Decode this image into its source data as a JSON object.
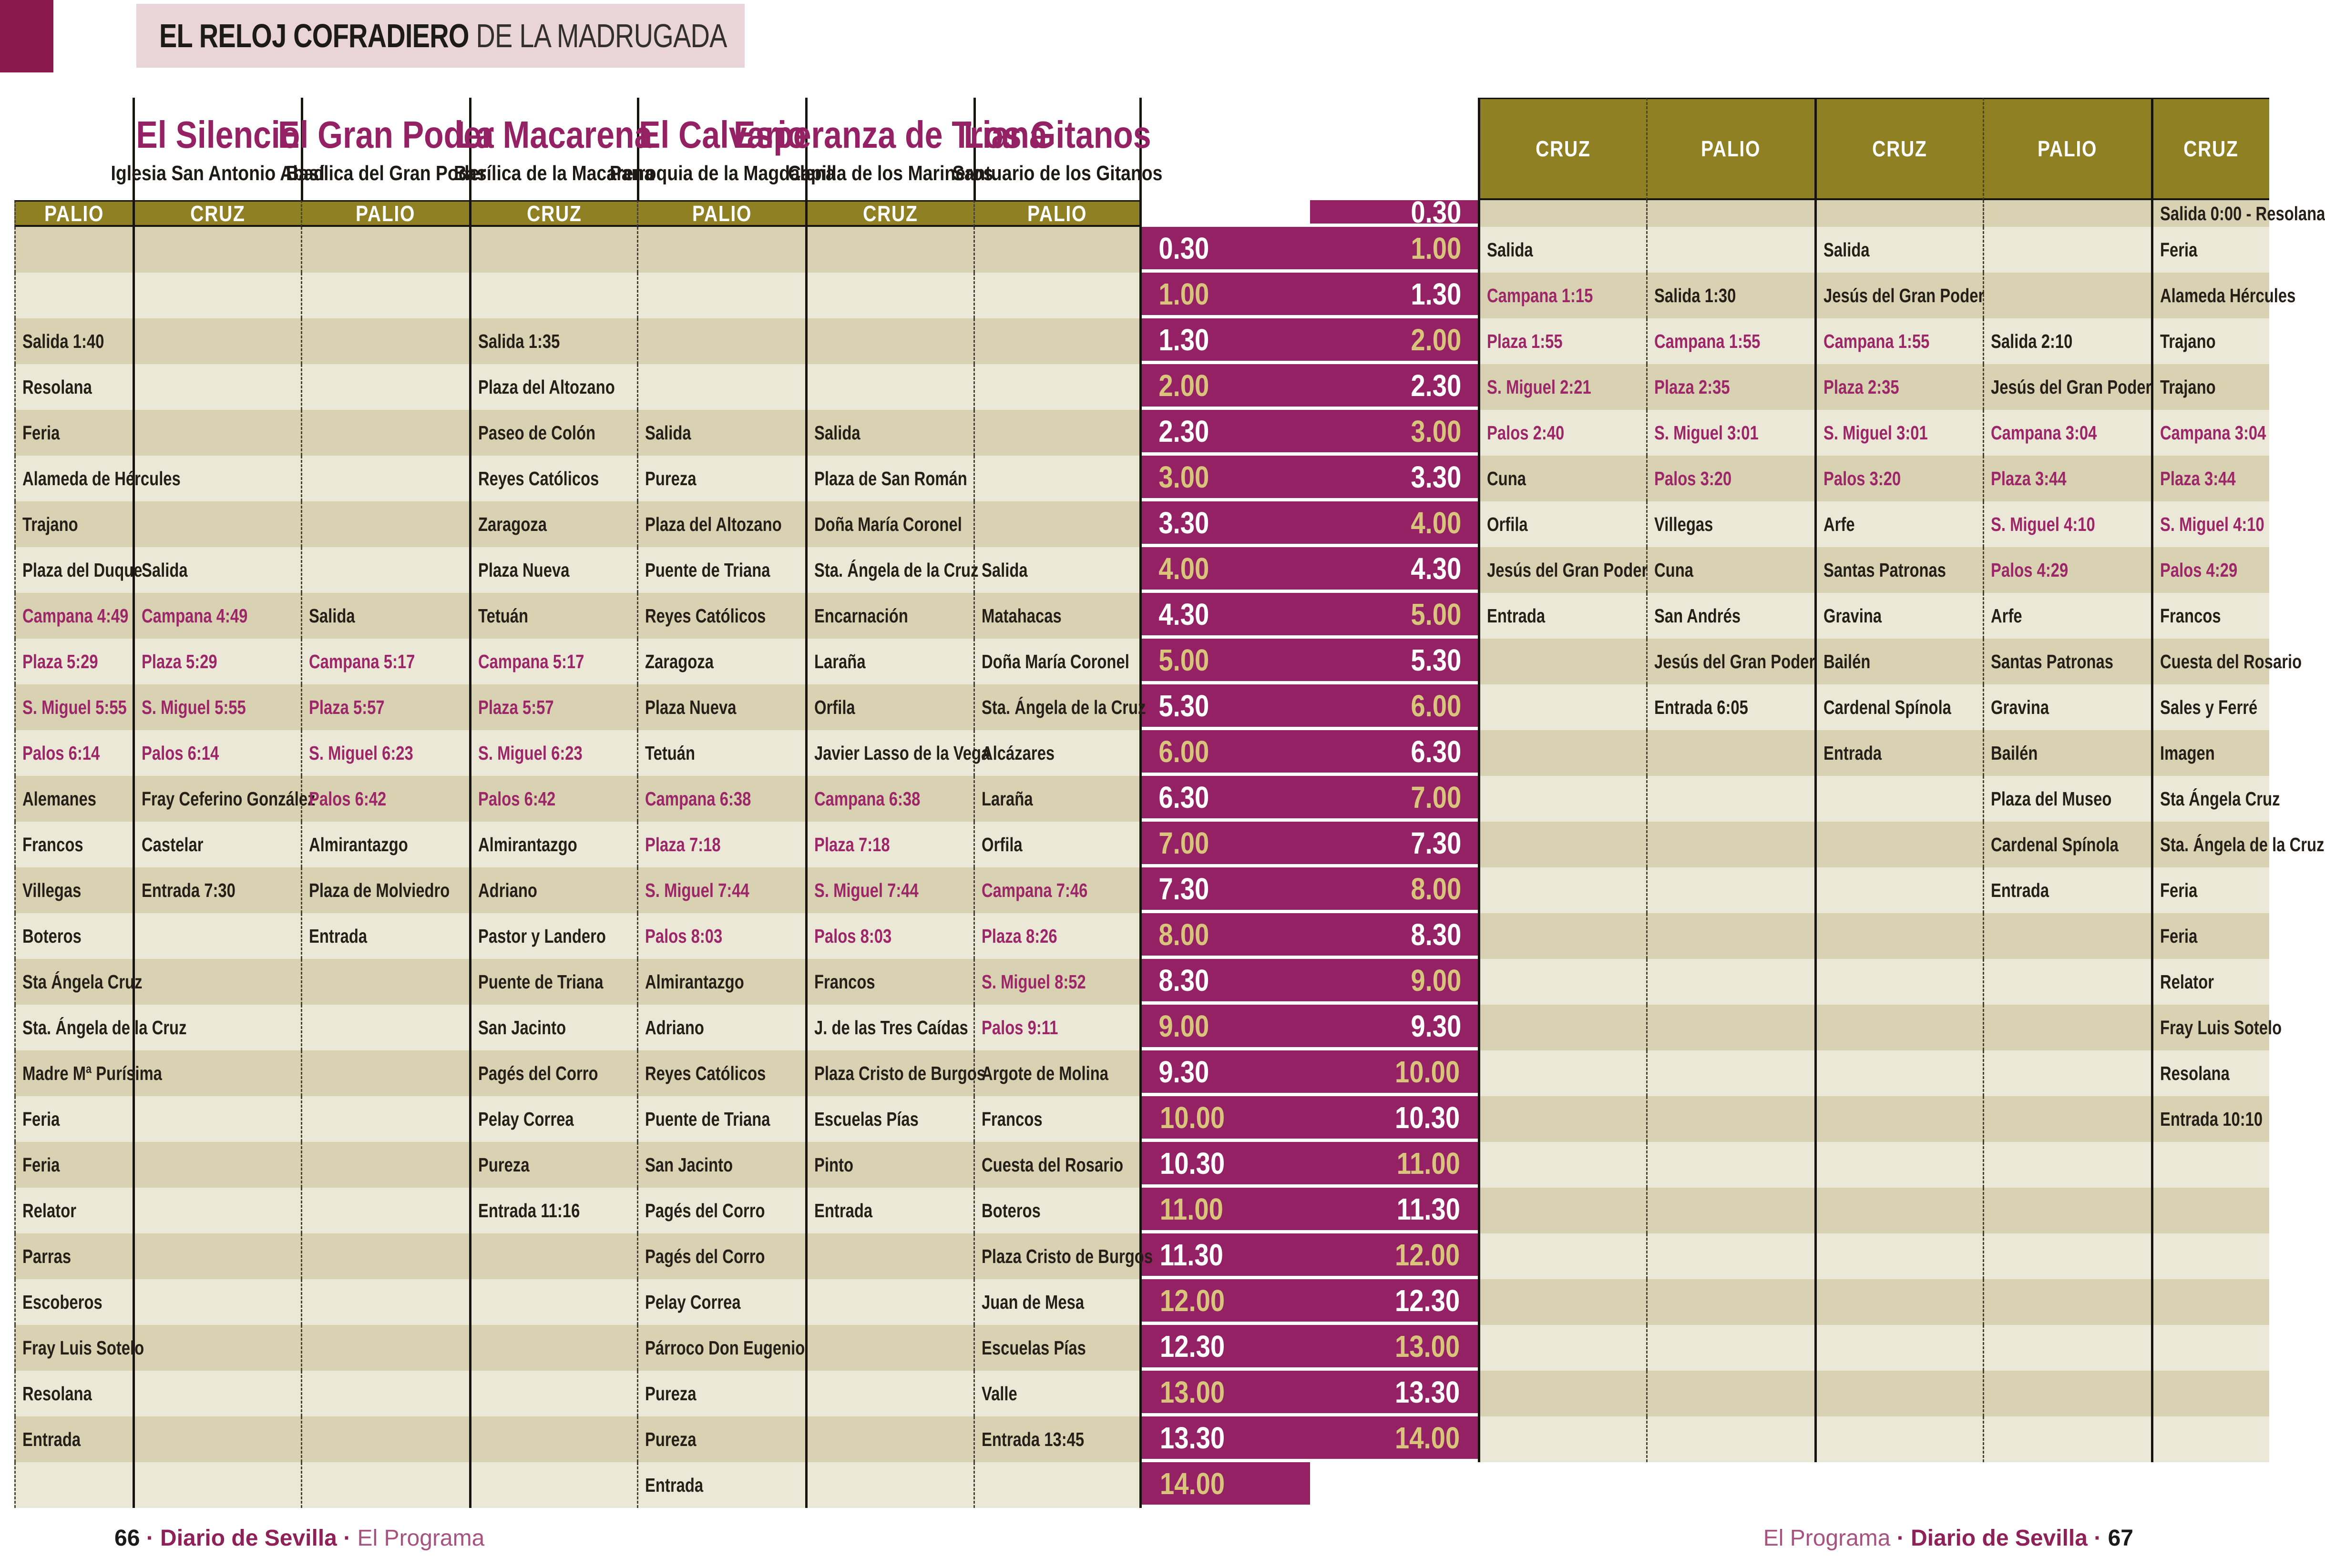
{
  "header": {
    "title_bold": "EL RELOJ COFRADIERO",
    "title_rest": " DE LA MADRUGADA"
  },
  "footer": {
    "left_page": "66",
    "left_brand": "Diario de Sevilla",
    "left_program": "El Programa",
    "right_program": "El Programa",
    "right_brand": "Diario de Sevilla",
    "right_page": "67",
    "separator": "·"
  },
  "colors": {
    "accent_maroon": "#932163",
    "corner_maroon": "#8a1a4e",
    "band_pink": "#e9d4da",
    "olive_header": "#8e8023",
    "row_tan": "#d8d1b2",
    "row_cream": "#ece8d8",
    "time_gold": "#d9c47b",
    "highlight_text": "#9c2768",
    "clock_mauve": "#b5738f"
  },
  "table": {
    "column_headers": [
      "CRUZ",
      "PALIO"
    ],
    "times": [
      "0.30",
      "1.00",
      "1.30",
      "2.00",
      "2.30",
      "3.00",
      "3.30",
      "4.00",
      "4.30",
      "5.00",
      "5.30",
      "6.00",
      "6.30",
      "7.00",
      "7.30",
      "8.00",
      "8.30",
      "9.00",
      "9.30",
      "10.00",
      "10.30",
      "11.00",
      "11.30",
      "12.00",
      "12.30",
      "13.00",
      "13.30",
      "14.00"
    ],
    "brotherhoods": [
      {
        "name": "El Silencio",
        "church": "Iglesia San Antonio Abad",
        "cruz": [
          {
            "time": "1.00",
            "text": "Salida"
          },
          {
            "time": "1.30",
            "text": "Campana 1:15",
            "highlight": true
          },
          {
            "time": "2.00",
            "text": "Plaza 1:55",
            "highlight": true
          },
          {
            "time": "2.30",
            "text": "S. Miguel 2:21",
            "highlight": true
          },
          {
            "time": "3.00",
            "text": "Palos 2:40",
            "highlight": true
          },
          {
            "time": "3.30",
            "text": "Cuna"
          },
          {
            "time": "4.00",
            "text": "Orfila"
          },
          {
            "time": "4.30",
            "text": "Jesús del Gran Poder"
          },
          {
            "time": "5.00",
            "text": "Entrada"
          }
        ],
        "palio": [
          {
            "time": "1.30",
            "text": "Salida 1:30"
          },
          {
            "time": "2.00",
            "text": "Campana 1:55",
            "highlight": true
          },
          {
            "time": "2.30",
            "text": "Plaza 2:35",
            "highlight": true
          },
          {
            "time": "3.00",
            "text": "S. Miguel 3:01",
            "highlight": true
          },
          {
            "time": "3.30",
            "text": "Palos 3:20",
            "highlight": true
          },
          {
            "time": "4.00",
            "text": "Villegas"
          },
          {
            "time": "4.30",
            "text": "Cuna"
          },
          {
            "time": "5.00",
            "text": "San Andrés"
          },
          {
            "time": "5.30",
            "text": "Jesús del Gran Poder"
          },
          {
            "time": "6.00",
            "text": "Entrada 6:05"
          }
        ]
      },
      {
        "name": "El Gran Poder",
        "church": "Basílica del Gran Poder",
        "cruz": [
          {
            "time": "1.00",
            "text": "Salida"
          },
          {
            "time": "1.30",
            "text": "Jesús del Gran Poder"
          },
          {
            "time": "2.00",
            "text": "Campana 1:55",
            "highlight": true
          },
          {
            "time": "2.30",
            "text": "Plaza 2:35",
            "highlight": true
          },
          {
            "time": "3.00",
            "text": "S. Miguel 3:01",
            "highlight": true
          },
          {
            "time": "3.30",
            "text": "Palos 3:20",
            "highlight": true
          },
          {
            "time": "4.00",
            "text": "Arfe"
          },
          {
            "time": "4.30",
            "text": "Santas Patronas"
          },
          {
            "time": "5.00",
            "text": "Gravina"
          },
          {
            "time": "5.30",
            "text": "Bailén"
          },
          {
            "time": "6.00",
            "text": "Cardenal Spínola"
          },
          {
            "time": "6.30",
            "text": "Entrada"
          }
        ],
        "palio": [
          {
            "time": "2.00",
            "text": "Salida 2:10"
          },
          {
            "time": "2.30",
            "text": "Jesús del Gran Poder"
          },
          {
            "time": "3.00",
            "text": "Campana 3:04",
            "highlight": true
          },
          {
            "time": "3.30",
            "text": "Plaza 3:44",
            "highlight": true
          },
          {
            "time": "4.00",
            "text": "S. Miguel 4:10",
            "highlight": true
          },
          {
            "time": "4.30",
            "text": "Palos 4:29",
            "highlight": true
          },
          {
            "time": "5.00",
            "text": "Arfe"
          },
          {
            "time": "5.30",
            "text": "Santas Patronas"
          },
          {
            "time": "6.00",
            "text": "Gravina"
          },
          {
            "time": "6.30",
            "text": "Bailén"
          },
          {
            "time": "7.00",
            "text": "Plaza del Museo"
          },
          {
            "time": "7.30",
            "text": "Cardenal Spínola"
          },
          {
            "time": "8.00",
            "text": "Entrada"
          }
        ]
      },
      {
        "name": "La Macarena",
        "church": "Basílica de la Macarena",
        "cruz": [
          {
            "time": "0.30",
            "text": "Salida 0:00 - Resolana"
          },
          {
            "time": "1.00",
            "text": "Feria"
          },
          {
            "time": "1.30",
            "text": "Alameda Hércules"
          },
          {
            "time": "2.00",
            "text": "Trajano"
          },
          {
            "time": "2.30",
            "text": "Trajano"
          },
          {
            "time": "3.00",
            "text": "Campana 3:04",
            "highlight": true
          },
          {
            "time": "3.30",
            "text": "Plaza 3:44",
            "highlight": true
          },
          {
            "time": "4.00",
            "text": "S. Miguel 4:10",
            "highlight": true
          },
          {
            "time": "4.30",
            "text": "Palos 4:29",
            "highlight": true
          },
          {
            "time": "5.00",
            "text": "Francos"
          },
          {
            "time": "5.30",
            "text": "Cuesta del Rosario"
          },
          {
            "time": "6.00",
            "text": "Sales y Ferré"
          },
          {
            "time": "6.30",
            "text": "Imagen"
          },
          {
            "time": "7.00",
            "text": "Sta Ángela Cruz"
          },
          {
            "time": "7.30",
            "text": "Sta. Ángela de la Cruz"
          },
          {
            "time": "8.00",
            "text": "Feria"
          },
          {
            "time": "8.30",
            "text": "Feria"
          },
          {
            "time": "9.00",
            "text": "Relator"
          },
          {
            "time": "9.30",
            "text": "Fray Luis Sotelo"
          },
          {
            "time": "10.00",
            "text": "Resolana"
          },
          {
            "time": "10.30",
            "text": "Entrada 10:10"
          }
        ],
        "palio": [
          {
            "time": "1.30",
            "text": "Salida 1:40"
          },
          {
            "time": "2.00",
            "text": "Resolana"
          },
          {
            "time": "2.30",
            "text": "Feria"
          },
          {
            "time": "3.00",
            "text": "Alameda de Hércules"
          },
          {
            "time": "3.30",
            "text": "Trajano"
          },
          {
            "time": "4.00",
            "text": "Plaza del Duque"
          },
          {
            "time": "4.30",
            "text": "Campana 4:49",
            "highlight": true
          },
          {
            "time": "5.00",
            "text": "Plaza 5:29",
            "highlight": true
          },
          {
            "time": "5.30",
            "text": "S. Miguel 5:55",
            "highlight": true
          },
          {
            "time": "6.00",
            "text": "Palos 6:14",
            "highlight": true
          },
          {
            "time": "6.30",
            "text": "Alemanes"
          },
          {
            "time": "7.00",
            "text": "Francos"
          },
          {
            "time": "7.30",
            "text": "Villegas"
          },
          {
            "time": "8.00",
            "text": "Boteros"
          },
          {
            "time": "8.30",
            "text": "Sta Ángela Cruz"
          },
          {
            "time": "9.00",
            "text": "Sta. Ángela de la Cruz"
          },
          {
            "time": "9.30",
            "text": "Madre Mª Purísima"
          },
          {
            "time": "10.00",
            "text": "Feria"
          },
          {
            "time": "10.30",
            "text": "Feria"
          },
          {
            "time": "11.00",
            "text": "Relator"
          },
          {
            "time": "11.30",
            "text": "Parras"
          },
          {
            "time": "12.00",
            "text": "Escoberos"
          },
          {
            "time": "12.30",
            "text": "Fray Luis Sotelo"
          },
          {
            "time": "13.00",
            "text": "Resolana"
          },
          {
            "time": "13.30",
            "text": "Entrada"
          }
        ]
      },
      {
        "name": "El Calvario",
        "church": "Parroquia de la Magdalena",
        "cruz": [
          {
            "time": "4.00",
            "text": "Salida"
          },
          {
            "time": "4.30",
            "text": "Campana 4:49",
            "highlight": true
          },
          {
            "time": "5.00",
            "text": "Plaza 5:29",
            "highlight": true
          },
          {
            "time": "5.30",
            "text": "S. Miguel 5:55",
            "highlight": true
          },
          {
            "time": "6.00",
            "text": "Palos 6:14",
            "highlight": true
          },
          {
            "time": "6.30",
            "text": "Fray Ceferino González"
          },
          {
            "time": "7.00",
            "text": "Castelar"
          },
          {
            "time": "7.30",
            "text": "Entrada 7:30"
          }
        ],
        "palio": [
          {
            "time": "4.30",
            "text": "Salida"
          },
          {
            "time": "5.00",
            "text": "Campana 5:17",
            "highlight": true
          },
          {
            "time": "5.30",
            "text": "Plaza 5:57",
            "highlight": true
          },
          {
            "time": "6.00",
            "text": "S. Miguel 6:23",
            "highlight": true
          },
          {
            "time": "6.30",
            "text": "Palos 6:42",
            "highlight": true
          },
          {
            "time": "7.00",
            "text": "Almirantazgo"
          },
          {
            "time": "7.30",
            "text": "Plaza de Molviedro"
          },
          {
            "time": "8.00",
            "text": "Entrada"
          }
        ]
      },
      {
        "name": "Esperanza de Triana",
        "church": "Capilla de los Marineros",
        "cruz": [
          {
            "time": "1.30",
            "text": "Salida 1:35"
          },
          {
            "time": "2.00",
            "text": "Plaza del Altozano"
          },
          {
            "time": "2.30",
            "text": "Paseo de Colón"
          },
          {
            "time": "3.00",
            "text": "Reyes Católicos"
          },
          {
            "time": "3.30",
            "text": "Zaragoza"
          },
          {
            "time": "4.00",
            "text": "Plaza Nueva"
          },
          {
            "time": "4.30",
            "text": "Tetuán"
          },
          {
            "time": "5.00",
            "text": "Campana 5:17",
            "highlight": true
          },
          {
            "time": "5.30",
            "text": "Plaza 5:57",
            "highlight": true
          },
          {
            "time": "6.00",
            "text": "S. Miguel 6:23",
            "highlight": true
          },
          {
            "time": "6.30",
            "text": "Palos 6:42",
            "highlight": true
          },
          {
            "time": "7.00",
            "text": "Almirantazgo"
          },
          {
            "time": "7.30",
            "text": "Adriano"
          },
          {
            "time": "8.00",
            "text": "Pastor y Landero"
          },
          {
            "time": "8.30",
            "text": "Puente de Triana"
          },
          {
            "time": "9.00",
            "text": "San Jacinto"
          },
          {
            "time": "9.30",
            "text": "Pagés del Corro"
          },
          {
            "time": "10.00",
            "text": "Pelay Correa"
          },
          {
            "time": "10.30",
            "text": "Pureza"
          },
          {
            "time": "11.00",
            "text": "Entrada 11:16"
          }
        ],
        "palio": [
          {
            "time": "2.30",
            "text": "Salida"
          },
          {
            "time": "3.00",
            "text": "Pureza"
          },
          {
            "time": "3.30",
            "text": "Plaza del Altozano"
          },
          {
            "time": "4.00",
            "text": "Puente de Triana"
          },
          {
            "time": "4.30",
            "text": "Reyes Católicos"
          },
          {
            "time": "5.00",
            "text": "Zaragoza"
          },
          {
            "time": "5.30",
            "text": "Plaza Nueva"
          },
          {
            "time": "6.00",
            "text": "Tetuán"
          },
          {
            "time": "6.30",
            "text": "Campana 6:38",
            "highlight": true
          },
          {
            "time": "7.00",
            "text": "Plaza 7:18",
            "highlight": true
          },
          {
            "time": "7.30",
            "text": "S. Miguel 7:44",
            "highlight": true
          },
          {
            "time": "8.00",
            "text": "Palos 8:03",
            "highlight": true
          },
          {
            "time": "8.30",
            "text": "Almirantazgo"
          },
          {
            "time": "9.00",
            "text": "Adriano"
          },
          {
            "time": "9.30",
            "text": "Reyes Católicos"
          },
          {
            "time": "10.00",
            "text": "Puente de Triana"
          },
          {
            "time": "10.30",
            "text": "San Jacinto"
          },
          {
            "time": "11.00",
            "text": "Pagés del Corro"
          },
          {
            "time": "11.30",
            "text": "Pagés del Corro"
          },
          {
            "time": "12.00",
            "text": "Pelay Correa"
          },
          {
            "time": "12.30",
            "text": "Párroco Don Eugenio"
          },
          {
            "time": "13.00",
            "text": "Pureza"
          },
          {
            "time": "13.30",
            "text": "Pureza"
          },
          {
            "time": "14.00",
            "text": "Entrada"
          }
        ]
      },
      {
        "name": "Los Gitanos",
        "church": "Santuario de los Gitanos",
        "cruz": [
          {
            "time": "2.30",
            "text": "Salida"
          },
          {
            "time": "3.00",
            "text": "Plaza de San Román"
          },
          {
            "time": "3.30",
            "text": "Doña María Coronel"
          },
          {
            "time": "4.00",
            "text": "Sta. Ángela de la Cruz"
          },
          {
            "time": "4.30",
            "text": "Encarnación"
          },
          {
            "time": "5.00",
            "text": "Laraña"
          },
          {
            "time": "5.30",
            "text": "Orfila"
          },
          {
            "time": "6.00",
            "text": "Javier Lasso de la Vega"
          },
          {
            "time": "6.30",
            "text": "Campana 6:38",
            "highlight": true
          },
          {
            "time": "7.00",
            "text": "Plaza 7:18",
            "highlight": true
          },
          {
            "time": "7.30",
            "text": "S. Miguel 7:44",
            "highlight": true
          },
          {
            "time": "8.00",
            "text": "Palos 8:03",
            "highlight": true
          },
          {
            "time": "8.30",
            "text": "Francos"
          },
          {
            "time": "9.00",
            "text": "J. de las Tres Caídas"
          },
          {
            "time": "9.30",
            "text": "Plaza Cristo de Burgos"
          },
          {
            "time": "10.00",
            "text": "Escuelas Pías"
          },
          {
            "time": "10.30",
            "text": "Pinto"
          },
          {
            "time": "11.00",
            "text": "Entrada"
          }
        ],
        "palio": [
          {
            "time": "4.00",
            "text": "Salida"
          },
          {
            "time": "4.30",
            "text": "Matahacas"
          },
          {
            "time": "5.00",
            "text": "Doña María Coronel"
          },
          {
            "time": "5.30",
            "text": "Sta. Ángela de la Cruz"
          },
          {
            "time": "6.00",
            "text": "Alcázares"
          },
          {
            "time": "6.30",
            "text": "Laraña"
          },
          {
            "time": "7.00",
            "text": "Orfila"
          },
          {
            "time": "7.30",
            "text": "Campana 7:46",
            "highlight": true
          },
          {
            "time": "8.00",
            "text": "Plaza 8:26",
            "highlight": true
          },
          {
            "time": "8.30",
            "text": "S. Miguel 8:52",
            "highlight": true
          },
          {
            "time": "9.00",
            "text": "Palos 9:11",
            "highlight": true
          },
          {
            "time": "9.30",
            "text": "Argote de Molina"
          },
          {
            "time": "10.00",
            "text": "Francos"
          },
          {
            "time": "10.30",
            "text": "Cuesta del Rosario"
          },
          {
            "time": "11.00",
            "text": "Boteros"
          },
          {
            "time": "11.30",
            "text": "Plaza Cristo de Burgos"
          },
          {
            "time": "12.00",
            "text": "Juan de Mesa"
          },
          {
            "time": "12.30",
            "text": "Escuelas Pías"
          },
          {
            "time": "13.00",
            "text": "Valle"
          },
          {
            "time": "13.30",
            "text": "Entrada 13:45"
          }
        ]
      }
    ]
  }
}
